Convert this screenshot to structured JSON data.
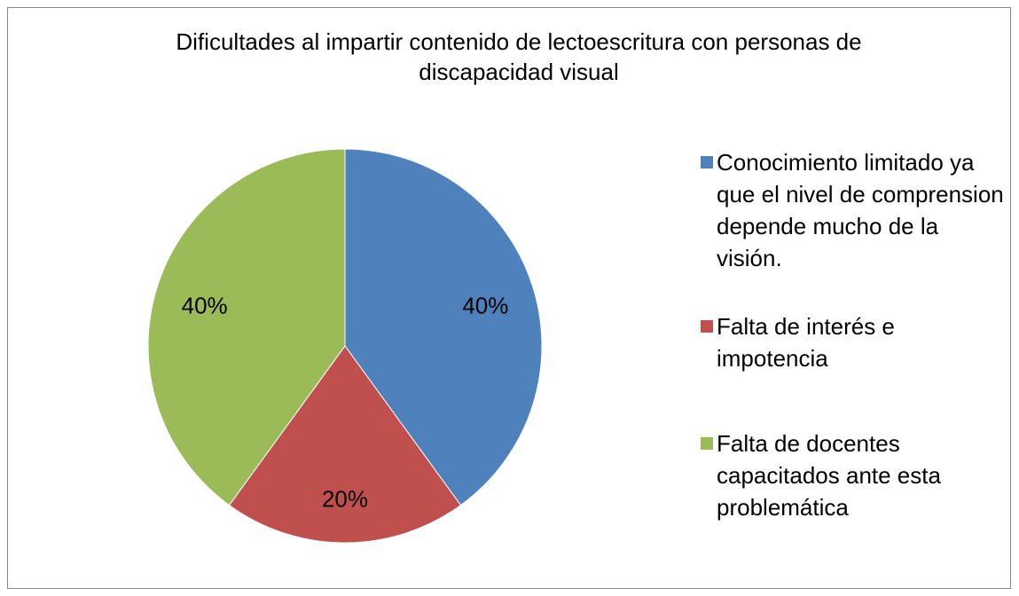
{
  "chart_data": {
    "type": "pie",
    "title": "Dificultades al impartir contenido de lectoescritura con personas de discapacidad visual",
    "categories": [
      "Conocimiento limitado ya que el nivel de comprension depende mucho de la visión.",
      "Falta de interés e impotencia",
      "Falta de docentes capacitados ante esta problemática"
    ],
    "values": [
      40,
      20,
      40
    ],
    "value_labels": [
      "40%",
      "20%",
      "40%"
    ],
    "colors": [
      "#4f81bd",
      "#c0504d",
      "#9bbb59"
    ],
    "legend": "right"
  }
}
